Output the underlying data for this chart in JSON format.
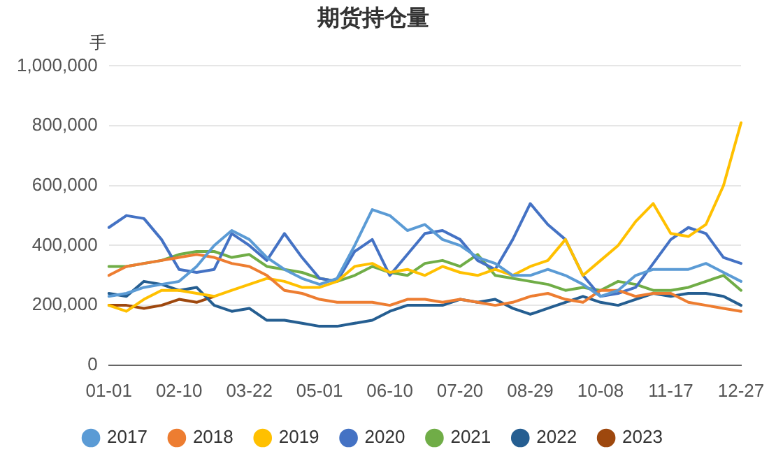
{
  "chart_data": {
    "type": "line",
    "title": "期货持仓量",
    "ylabel": "手",
    "categories": [
      "01-01",
      null,
      null,
      null,
      "02-10",
      null,
      null,
      null,
      "03-22",
      null,
      null,
      null,
      "05-01",
      null,
      null,
      null,
      "06-10",
      null,
      null,
      null,
      "07-20",
      null,
      null,
      null,
      "08-29",
      null,
      null,
      null,
      "10-08",
      null,
      null,
      null,
      "11-17",
      null,
      null,
      null,
      "12-27"
    ],
    "series": [
      {
        "name": "2017",
        "color": "#5b9bd5",
        "values": [
          230000,
          240000,
          260000,
          270000,
          280000,
          330000,
          400000,
          450000,
          420000,
          360000,
          320000,
          290000,
          270000,
          290000,
          400000,
          520000,
          500000,
          450000,
          470000,
          420000,
          400000,
          360000,
          340000,
          300000,
          300000,
          320000,
          300000,
          270000,
          230000,
          250000,
          300000,
          320000,
          320000,
          320000,
          340000,
          310000,
          280000
        ]
      },
      {
        "name": "2018",
        "color": "#ed7d31",
        "values": [
          300000,
          330000,
          340000,
          350000,
          360000,
          370000,
          360000,
          340000,
          330000,
          300000,
          250000,
          240000,
          220000,
          210000,
          210000,
          210000,
          200000,
          220000,
          220000,
          210000,
          220000,
          210000,
          200000,
          210000,
          230000,
          240000,
          220000,
          210000,
          250000,
          250000,
          230000,
          240000,
          240000,
          210000,
          200000,
          190000,
          180000
        ]
      },
      {
        "name": "2019",
        "color": "#ffc000",
        "values": [
          200000,
          180000,
          220000,
          250000,
          250000,
          240000,
          230000,
          250000,
          270000,
          290000,
          280000,
          260000,
          260000,
          280000,
          330000,
          340000,
          310000,
          320000,
          300000,
          330000,
          310000,
          300000,
          320000,
          300000,
          330000,
          350000,
          420000,
          300000,
          350000,
          400000,
          480000,
          540000,
          440000,
          430000,
          470000,
          600000,
          810000
        ]
      },
      {
        "name": "2020",
        "color": "#4472c4",
        "values": [
          460000,
          500000,
          490000,
          420000,
          320000,
          310000,
          320000,
          440000,
          400000,
          350000,
          440000,
          360000,
          290000,
          280000,
          380000,
          420000,
          300000,
          370000,
          440000,
          450000,
          420000,
          350000,
          320000,
          420000,
          540000,
          470000,
          420000,
          300000,
          230000,
          240000,
          260000,
          340000,
          420000,
          460000,
          440000,
          360000,
          340000
        ]
      },
      {
        "name": "2021",
        "color": "#70ad47",
        "values": [
          330000,
          330000,
          340000,
          350000,
          370000,
          380000,
          380000,
          360000,
          370000,
          330000,
          320000,
          310000,
          290000,
          280000,
          300000,
          330000,
          310000,
          300000,
          340000,
          350000,
          330000,
          370000,
          300000,
          290000,
          280000,
          270000,
          250000,
          260000,
          250000,
          280000,
          270000,
          250000,
          250000,
          260000,
          280000,
          300000,
          250000
        ]
      },
      {
        "name": "2022",
        "color": "#255e91",
        "values": [
          240000,
          230000,
          280000,
          270000,
          250000,
          260000,
          200000,
          180000,
          190000,
          150000,
          150000,
          140000,
          130000,
          130000,
          140000,
          150000,
          180000,
          200000,
          200000,
          200000,
          220000,
          210000,
          220000,
          190000,
          170000,
          190000,
          210000,
          230000,
          210000,
          200000,
          220000,
          240000,
          230000,
          240000,
          240000,
          230000,
          200000
        ]
      },
      {
        "name": "2023",
        "color": "#9e480e",
        "values": [
          200000,
          200000,
          190000,
          200000,
          220000,
          210000,
          230000,
          null,
          null,
          null,
          null,
          null,
          null,
          null,
          null,
          null,
          null,
          null,
          null,
          null,
          null,
          null,
          null,
          null,
          null,
          null,
          null,
          null,
          null,
          null,
          null,
          null,
          null,
          null,
          null,
          null,
          null
        ]
      }
    ],
    "ylim": [
      0,
      1000000
    ],
    "yticks": [
      0,
      {
        "value": 200000,
        "label": "200,000"
      },
      {
        "value": 400000,
        "label": "400,000"
      },
      {
        "value": 600000,
        "label": "600,000"
      },
      {
        "value": 800000,
        "label": "800,000"
      },
      {
        "value": 1000000,
        "label": "1,000,000"
      }
    ],
    "grid": "y",
    "legend": "bottom",
    "marker": "none",
    "line_style": "solid"
  }
}
